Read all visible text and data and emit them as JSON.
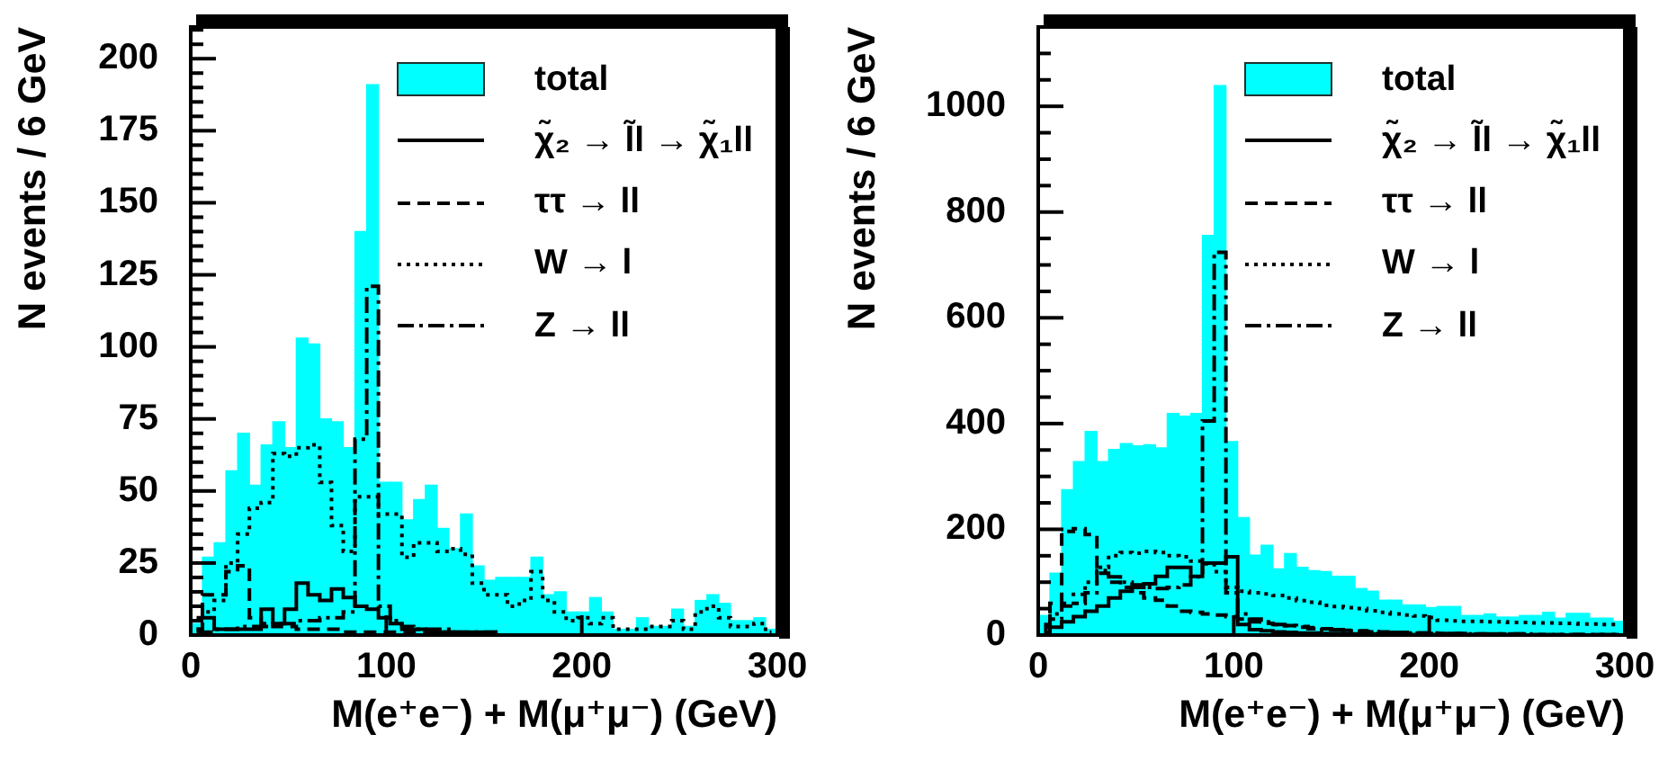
{
  "chart_data": [
    {
      "type": "histogram",
      "xlabel": "M(e⁺e⁻) + M(μ⁺μ⁻) (GeV)",
      "ylabel": "N events / 6 GeV",
      "legend": "top right",
      "bins": [
        0,
        6,
        12,
        18,
        24,
        30,
        36,
        42,
        48,
        54,
        60,
        66,
        72,
        78,
        84,
        90,
        96,
        102,
        108,
        114,
        120,
        126,
        132,
        138,
        144,
        150,
        156,
        162,
        168,
        174,
        180,
        186,
        192,
        198,
        204,
        210,
        216,
        222,
        228,
        234,
        240,
        246,
        252,
        258,
        264,
        270,
        276,
        282,
        288,
        294,
        300
      ],
      "xlim": [
        0,
        300
      ],
      "xticks": [
        0,
        100,
        200,
        300
      ],
      "ylim": [
        0,
        211
      ],
      "yticks": [
        0,
        {
          "value": 5,
          "label": null
        },
        {
          "value": 10,
          "label": null
        },
        {
          "value": 15,
          "label": null
        },
        {
          "value": 20,
          "label": null
        },
        25,
        {
          "value": 30,
          "label": null
        },
        {
          "value": 35,
          "label": null
        },
        {
          "value": 40,
          "label": null
        },
        {
          "value": 45,
          "label": null
        },
        50,
        {
          "value": 55,
          "label": null
        },
        {
          "value": 60,
          "label": null
        },
        {
          "value": 65,
          "label": null
        },
        {
          "value": 70,
          "label": null
        },
        75,
        {
          "value": 80,
          "label": null
        },
        {
          "value": 85,
          "label": null
        },
        {
          "value": 90,
          "label": null
        },
        {
          "value": 95,
          "label": null
        },
        100,
        {
          "value": 105,
          "label": null
        },
        {
          "value": 110,
          "label": null
        },
        {
          "value": 115,
          "label": null
        },
        {
          "value": 120,
          "label": null
        },
        125,
        {
          "value": 130,
          "label": null
        },
        {
          "value": 135,
          "label": null
        },
        {
          "value": 140,
          "label": null
        },
        {
          "value": 145,
          "label": null
        },
        150,
        {
          "value": 155,
          "label": null
        },
        {
          "value": 160,
          "label": null
        },
        {
          "value": 165,
          "label": null
        },
        {
          "value": 170,
          "label": null
        },
        175,
        {
          "value": 180,
          "label": null
        },
        {
          "value": 185,
          "label": null
        },
        {
          "value": 190,
          "label": null
        },
        {
          "value": 195,
          "label": null
        },
        200,
        {
          "value": 205,
          "label": null
        },
        {
          "value": 210,
          "label": null
        }
      ],
      "series": [
        {
          "name": "total",
          "color": "#00ffff",
          "values": [
            4,
            27,
            32,
            57,
            70,
            52,
            66,
            74,
            65,
            103,
            101,
            75,
            74,
            65,
            140,
            191,
            53,
            53,
            40,
            47,
            52,
            37,
            30,
            42,
            24,
            19,
            20,
            20,
            20,
            27,
            14,
            15,
            8,
            8,
            13,
            8,
            2,
            2,
            6,
            3,
            3,
            9,
            3,
            12,
            14,
            11,
            5,
            5,
            6,
            2
          ]
        },
        {
          "name": "χ̃₂ → l̃l → χ̃₁ll",
          "type": "step",
          "line_style": "solid",
          "color": "#000000",
          "x": [
            3,
            9,
            15,
            21,
            27,
            33,
            39,
            45,
            51,
            57,
            63,
            69,
            75,
            81,
            87,
            93,
            99,
            105,
            111,
            117,
            123,
            129,
            135,
            141,
            147,
            153,
            159,
            165,
            171,
            177,
            183,
            189,
            195,
            201,
            207,
            213,
            219,
            225,
            231,
            237,
            243,
            249,
            255,
            261,
            267,
            273,
            279,
            285,
            291,
            297
          ],
          "values": [
            6,
            6,
            2,
            2,
            2,
            2,
            9,
            4,
            9,
            18,
            14,
            12,
            16,
            13,
            10,
            9,
            6,
            4,
            2,
            2,
            1,
            1,
            1,
            1,
            1,
            1,
            0,
            0,
            0,
            0,
            0,
            0,
            0,
            0,
            0,
            0,
            0,
            0,
            0,
            0,
            0,
            0,
            0,
            0,
            0,
            0,
            0,
            0,
            0,
            0
          ]
        },
        {
          "name": "ττ → ll",
          "type": "step",
          "line_style": "dashed",
          "color": "#000000",
          "x": [
            3,
            9,
            15,
            21,
            27,
            33,
            39,
            45,
            51,
            57,
            63,
            69,
            75,
            81,
            87,
            93,
            99,
            105,
            111,
            117,
            123,
            129,
            135,
            141,
            147,
            153,
            159,
            165,
            171,
            177,
            183,
            189,
            195,
            201,
            207,
            213,
            219,
            225,
            231,
            237,
            243,
            249,
            255,
            261,
            267,
            273,
            279,
            285,
            291,
            297
          ],
          "values": [
            2,
            14,
            14,
            22,
            24,
            6,
            4,
            3,
            3,
            2,
            2,
            2,
            2,
            1,
            1,
            1,
            1,
            1,
            1,
            1,
            1,
            1,
            1,
            0,
            0,
            0,
            0,
            0,
            0,
            0,
            0,
            0,
            0,
            0,
            0,
            0,
            0,
            0,
            0,
            0,
            0,
            0,
            0,
            0,
            0,
            0,
            0,
            0,
            0,
            0
          ]
        },
        {
          "name": "W → l",
          "type": "step",
          "line_style": "dotted",
          "color": "#000000",
          "x": [
            3,
            9,
            15,
            21,
            27,
            33,
            39,
            45,
            51,
            57,
            63,
            69,
            75,
            81,
            87,
            93,
            99,
            105,
            111,
            117,
            123,
            129,
            135,
            141,
            147,
            153,
            159,
            165,
            171,
            177,
            183,
            189,
            195,
            201,
            207,
            213,
            219,
            225,
            231,
            237,
            243,
            249,
            255,
            261,
            267,
            273,
            279,
            285,
            291,
            297
          ],
          "values": [
            2,
            8,
            12,
            25,
            35,
            44,
            46,
            63,
            62,
            65,
            66,
            53,
            38,
            29,
            48,
            48,
            42,
            42,
            27,
            32,
            32,
            29,
            30,
            28,
            18,
            14,
            14,
            10,
            12,
            22,
            12,
            8,
            5,
            6,
            4,
            6,
            2,
            2,
            2,
            3,
            3,
            5,
            2,
            8,
            10,
            6,
            3,
            3,
            4,
            1
          ]
        },
        {
          "name": "Z → ll",
          "type": "step",
          "line_style": "dashdot",
          "color": "#000000",
          "x": [
            3,
            9,
            15,
            21,
            27,
            33,
            39,
            45,
            51,
            57,
            63,
            69,
            75,
            81,
            87,
            93,
            99,
            105,
            111,
            117,
            123,
            129,
            135,
            141,
            147,
            153,
            159,
            165,
            171,
            177,
            183,
            189,
            195,
            201,
            207,
            213,
            219,
            225,
            231,
            237,
            243,
            249,
            255,
            261,
            267,
            273,
            279,
            285,
            291,
            297
          ],
          "values": [
            1,
            1,
            2,
            2,
            3,
            3,
            3,
            4,
            4,
            5,
            5,
            6,
            6,
            8,
            68,
            121,
            10,
            5,
            3,
            2,
            2,
            2,
            1,
            1,
            1,
            1,
            0,
            0,
            0,
            0,
            0,
            0,
            0,
            0,
            0,
            0,
            0,
            0,
            0,
            0,
            0,
            0,
            0,
            0,
            0,
            0,
            0,
            0,
            0,
            0
          ]
        }
      ]
    },
    {
      "type": "histogram",
      "xlabel": "M(e⁺e⁻) + M(μ⁺μ⁻) (GeV)",
      "ylabel": "N events / 6 GeV",
      "legend": "top right",
      "bins": [
        0,
        6,
        12,
        18,
        24,
        30,
        36,
        42,
        48,
        54,
        60,
        66,
        72,
        78,
        84,
        90,
        96,
        102,
        108,
        114,
        120,
        126,
        132,
        138,
        144,
        150,
        156,
        162,
        168,
        174,
        180,
        186,
        192,
        198,
        204,
        210,
        216,
        222,
        228,
        234,
        240,
        246,
        252,
        258,
        264,
        270,
        276,
        282,
        288,
        294,
        300
      ],
      "xlim": [
        0,
        300
      ],
      "xticks": [
        0,
        100,
        200,
        300
      ],
      "ylim": [
        0,
        1150
      ],
      "yticks": [
        0,
        {
          "value": 50,
          "label": null
        },
        {
          "value": 100,
          "label": null
        },
        {
          "value": 150,
          "label": null
        },
        200,
        {
          "value": 250,
          "label": null
        },
        {
          "value": 300,
          "label": null
        },
        {
          "value": 350,
          "label": null
        },
        400,
        {
          "value": 450,
          "label": null
        },
        {
          "value": 500,
          "label": null
        },
        {
          "value": 550,
          "label": null
        },
        600,
        {
          "value": 650,
          "label": null
        },
        {
          "value": 700,
          "label": null
        },
        {
          "value": 750,
          "label": null
        },
        800,
        {
          "value": 850,
          "label": null
        },
        {
          "value": 900,
          "label": null
        },
        {
          "value": 950,
          "label": null
        },
        1000,
        {
          "value": 1050,
          "label": null
        },
        {
          "value": 1100,
          "label": null
        },
        {
          "value": 1150,
          "label": null
        }
      ],
      "series": [
        {
          "name": "total",
          "color": "#00ffff",
          "values": [
            37,
            117,
            275,
            328,
            385,
            328,
            351,
            362,
            358,
            360,
            354,
            419,
            414,
            419,
            756,
            1039,
            366,
            222,
            151,
            170,
            125,
            154,
            128,
            122,
            120,
            111,
            111,
            88,
            83,
            66,
            66,
            57,
            57,
            52,
            54,
            54,
            37,
            37,
            40,
            34,
            34,
            37,
            37,
            43,
            32,
            41,
            41,
            32,
            32,
            26
          ]
        },
        {
          "name": "χ̃₂ → l̃l → χ̃₁ll",
          "type": "step",
          "line_style": "solid",
          "color": "#000000",
          "x": [
            3,
            9,
            15,
            21,
            27,
            33,
            39,
            45,
            51,
            57,
            63,
            69,
            75,
            81,
            87,
            93,
            99,
            105,
            111,
            117,
            123,
            129,
            135,
            141,
            147,
            153,
            159,
            165,
            171,
            177,
            183,
            189,
            195,
            201,
            207,
            213,
            219,
            225,
            231,
            237,
            243,
            249,
            255,
            261,
            267,
            273,
            279,
            285,
            291,
            297
          ],
          "values": [
            5,
            15,
            25,
            35,
            45,
            55,
            70,
            83,
            90,
            97,
            111,
            128,
            128,
            111,
            136,
            136,
            148,
            20,
            10,
            8,
            6,
            5,
            4,
            4,
            3,
            3,
            2,
            2,
            2,
            2,
            1,
            1,
            1,
            1,
            1,
            1,
            1,
            1,
            1,
            1,
            0,
            0,
            0,
            0,
            0,
            0,
            0,
            0,
            0,
            0
          ]
        },
        {
          "name": "ττ → ll",
          "type": "step",
          "line_style": "dashed",
          "color": "#000000",
          "x": [
            3,
            9,
            15,
            21,
            27,
            33,
            39,
            45,
            51,
            57,
            63,
            69,
            75,
            81,
            87,
            93,
            99,
            105,
            111,
            117,
            123,
            129,
            135,
            141,
            147,
            153,
            159,
            165,
            171,
            177,
            183,
            189,
            195,
            201,
            207,
            213,
            219,
            225,
            231,
            237,
            243,
            249,
            255,
            261,
            267,
            273,
            279,
            285,
            291,
            297
          ],
          "values": [
            15,
            60,
            196,
            201,
            190,
            117,
            100,
            90,
            80,
            70,
            66,
            55,
            45,
            43,
            40,
            38,
            35,
            30,
            25,
            22,
            20,
            18,
            16,
            14,
            12,
            10,
            9,
            8,
            7,
            6,
            5,
            5,
            4,
            4,
            3,
            3,
            3,
            2,
            2,
            2,
            2,
            2,
            1,
            1,
            1,
            1,
            1,
            1,
            1,
            1
          ]
        },
        {
          "name": "W → l",
          "type": "step",
          "line_style": "dotted",
          "color": "#000000",
          "x": [
            3,
            9,
            15,
            21,
            27,
            33,
            39,
            45,
            51,
            57,
            63,
            69,
            75,
            81,
            87,
            93,
            99,
            105,
            111,
            117,
            123,
            129,
            135,
            141,
            147,
            153,
            159,
            165,
            171,
            177,
            183,
            189,
            195,
            201,
            207,
            213,
            219,
            225,
            231,
            237,
            243,
            249,
            255,
            261,
            267,
            273,
            279,
            285,
            291,
            297
          ],
          "values": [
            10,
            30,
            60,
            77,
            100,
            128,
            150,
            156,
            155,
            158,
            156,
            150,
            148,
            140,
            135,
            120,
            90,
            83,
            80,
            78,
            75,
            70,
            65,
            62,
            56,
            54,
            52,
            50,
            46,
            43,
            40,
            38,
            36,
            33,
            28,
            27,
            26,
            26,
            25,
            25,
            24,
            24,
            23,
            23,
            22,
            22,
            21,
            21,
            20,
            20
          ]
        },
        {
          "name": "Z → ll",
          "type": "step",
          "line_style": "dashdot",
          "color": "#000000",
          "x": [
            3,
            9,
            15,
            21,
            27,
            33,
            39,
            45,
            51,
            57,
            63,
            69,
            75,
            81,
            87,
            93,
            99,
            105,
            111,
            117,
            123,
            129,
            135,
            141,
            147,
            153,
            159,
            165,
            171,
            177,
            183,
            189,
            195,
            201,
            207,
            213,
            219,
            225,
            231,
            237,
            243,
            249,
            255,
            261,
            267,
            273,
            279,
            285,
            291,
            297
          ],
          "values": [
            20,
            40,
            55,
            60,
            80,
            122,
            110,
            100,
            95,
            90,
            88,
            90,
            95,
            110,
            405,
            724,
            80,
            40,
            30,
            25,
            20,
            18,
            15,
            12,
            10,
            10,
            8,
            7,
            6,
            5,
            5,
            4,
            4,
            3,
            3,
            3,
            2,
            2,
            2,
            2,
            2,
            2,
            1,
            1,
            1,
            1,
            1,
            1,
            1,
            1
          ]
        }
      ]
    }
  ]
}
